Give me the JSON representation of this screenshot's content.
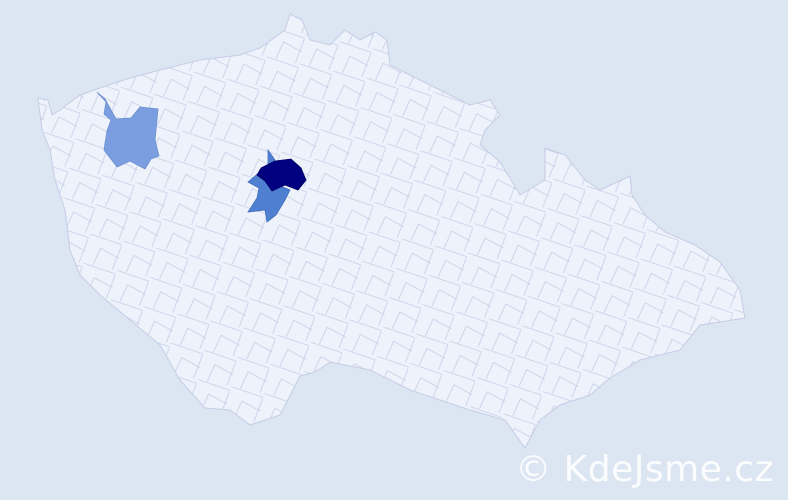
{
  "map": {
    "colors": {
      "background": "#dce5f2",
      "region_default": "#eef2fa",
      "region_border": "#c5cde6",
      "level_low": "#7a9edf",
      "level_mid": "#4f7fd0",
      "level_high": "#000080"
    },
    "highlighted_regions": [
      "level_low",
      "level_mid",
      "level_high"
    ]
  },
  "watermark": {
    "text": "© KdeJsme.cz"
  }
}
